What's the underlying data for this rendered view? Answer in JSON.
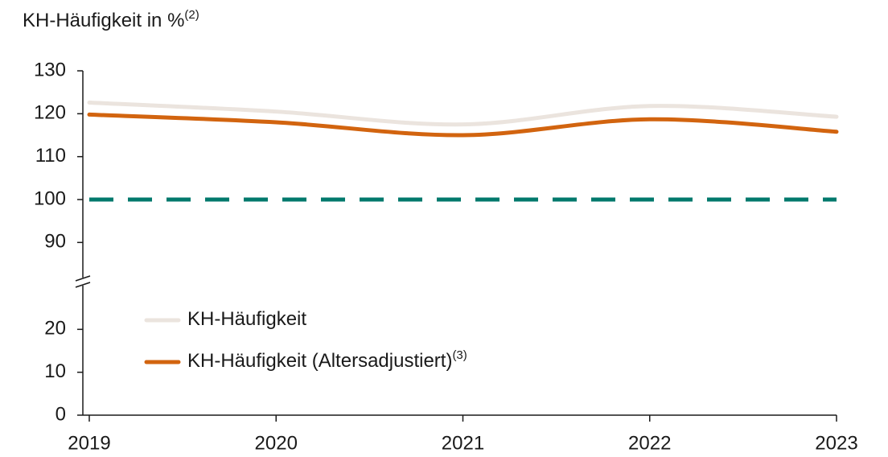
{
  "chart_data": {
    "type": "line",
    "title": "KH-Häufigkeit in %",
    "title_note": "(2)",
    "x": [
      2019,
      2020,
      2021,
      2022,
      2023
    ],
    "xlim": [
      2019,
      2023
    ],
    "xticks": [
      2019,
      2020,
      2021,
      2022,
      2023
    ],
    "ylim": [
      0,
      130
    ],
    "yticks": [
      0,
      10,
      20,
      90,
      100,
      110,
      120,
      130
    ],
    "axis_break": [
      27,
      85
    ],
    "smooth": true,
    "series": [
      {
        "name": "KH-Häufigkeit",
        "color": "#ebe4de",
        "values": [
          122.6,
          120.5,
          117.5,
          121.8,
          119.3
        ]
      },
      {
        "name": "KH-Häufigkeit (Altersadjustiert)",
        "note": "(3)",
        "color": "#d2640f",
        "values": [
          119.8,
          118.0,
          115.0,
          118.7,
          115.8
        ]
      }
    ],
    "reference_line": {
      "value": 100,
      "color": "#00796c",
      "dashed": true
    }
  }
}
